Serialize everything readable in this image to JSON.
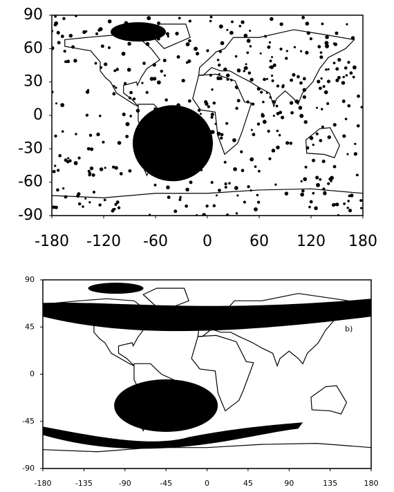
{
  "chart_data": [
    {
      "type": "map",
      "xlim": [
        -180,
        180
      ],
      "ylim": [
        -90,
        90
      ],
      "xticks": [
        -180,
        -120,
        -60,
        0,
        60,
        120,
        180
      ],
      "yticks": [
        -90,
        -60,
        -30,
        0,
        30,
        60,
        90
      ]
    },
    {
      "type": "map",
      "xlim": [
        -180,
        180
      ],
      "ylim": [
        -90,
        90
      ],
      "xticks": [
        -180,
        -135,
        -90,
        -45,
        0,
        45,
        90,
        135,
        180
      ],
      "yticks": [
        -90,
        -45,
        0,
        45,
        90
      ],
      "annotation": "b)"
    }
  ]
}
